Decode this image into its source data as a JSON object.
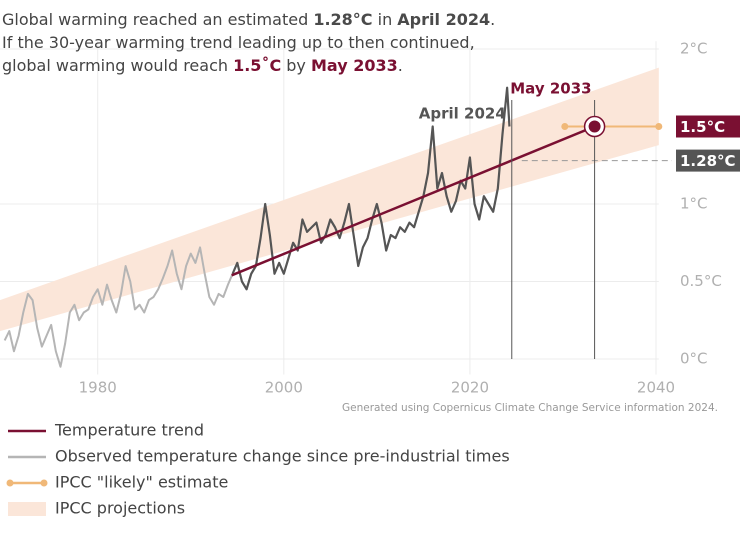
{
  "chart_data": {
    "type": "line",
    "title_lines": [
      [
        {
          "text": "Global warming reached an estimated "
        },
        {
          "text": "1.28°C",
          "bold": true,
          "color": "#4a4a4a"
        },
        {
          "text": " in "
        },
        {
          "text": "April 2024",
          "bold": true,
          "color": "#4a4a4a"
        },
        {
          "text": "."
        }
      ],
      [
        {
          "text": "If the 30-year warming trend leading up to then continued,"
        }
      ],
      [
        {
          "text": "global warming would reach "
        },
        {
          "text": "1.5˚C",
          "bold": true,
          "color": "#7a1032"
        },
        {
          "text": " by "
        },
        {
          "text": "May 2033",
          "bold": true,
          "color": "#7a1032"
        },
        {
          "text": "."
        }
      ]
    ],
    "caption": "Generated using Copernicus Climate Change Service information 2024.",
    "xlim": [
      1969.5,
      2040.3
    ],
    "ylim": [
      -0.1,
      2.05
    ],
    "xticks": [
      1980,
      2000,
      2020,
      2040
    ],
    "yticks": [
      {
        "value": 0,
        "label": "0°C"
      },
      {
        "value": 0.5,
        "label": "0.5°C"
      },
      {
        "value": 1,
        "label": "1°C"
      },
      {
        "value": 2,
        "label": "2°C"
      }
    ],
    "grid": true,
    "band": {
      "name": "IPCC projections",
      "color": "#fbe6d9",
      "x": [
        1969.5,
        2040.3
      ],
      "lower": [
        0.18,
        1.38
      ],
      "upper": [
        0.38,
        1.88
      ]
    },
    "series": [
      {
        "name": "Temperature trend",
        "color": "#7a1032",
        "style": "line",
        "x": [
          1994.4,
          2033.4
        ],
        "values": [
          0.54,
          1.5
        ]
      },
      {
        "name": "Observed temperature change since pre-industrial times",
        "color": "#b5b5b5",
        "style": "line",
        "highlight": {
          "from": 1994.5,
          "color": "#555555"
        },
        "x": [
          1970,
          1970.5,
          1971,
          1971.5,
          1972,
          1972.5,
          1973,
          1973.5,
          1974,
          1974.5,
          1975,
          1975.5,
          1976,
          1976.5,
          1977,
          1977.5,
          1978,
          1978.5,
          1979,
          1979.5,
          1980,
          1980.5,
          1981,
          1981.5,
          1982,
          1982.5,
          1983,
          1983.5,
          1984,
          1984.5,
          1985,
          1985.5,
          1986,
          1986.5,
          1987,
          1987.5,
          1988,
          1988.5,
          1989,
          1989.5,
          1990,
          1990.5,
          1991,
          1991.5,
          1992,
          1992.5,
          1993,
          1993.5,
          1994,
          1994.5,
          1995,
          1995.5,
          1996,
          1996.5,
          1997,
          1997.5,
          1998,
          1998.5,
          1999,
          1999.5,
          2000,
          2000.5,
          2001,
          2001.5,
          2002,
          2002.5,
          2003,
          2003.5,
          2004,
          2004.5,
          2005,
          2005.5,
          2006,
          2006.5,
          2007,
          2007.5,
          2008,
          2008.5,
          2009,
          2009.5,
          2010,
          2010.5,
          2011,
          2011.5,
          2012,
          2012.5,
          2013,
          2013.5,
          2014,
          2014.5,
          2015,
          2015.5,
          2016,
          2016.5,
          2017,
          2017.5,
          2018,
          2018.5,
          2019,
          2019.5,
          2020,
          2020.5,
          2021,
          2021.5,
          2022,
          2022.5,
          2023,
          2023.5,
          2024,
          2024.25
        ],
        "values": [
          0.12,
          0.18,
          0.05,
          0.15,
          0.3,
          0.42,
          0.38,
          0.2,
          0.08,
          0.15,
          0.22,
          0.05,
          -0.05,
          0.1,
          0.3,
          0.35,
          0.25,
          0.3,
          0.32,
          0.4,
          0.45,
          0.35,
          0.48,
          0.38,
          0.3,
          0.42,
          0.6,
          0.5,
          0.32,
          0.35,
          0.3,
          0.38,
          0.4,
          0.45,
          0.52,
          0.6,
          0.7,
          0.55,
          0.45,
          0.6,
          0.68,
          0.62,
          0.72,
          0.55,
          0.4,
          0.35,
          0.42,
          0.4,
          0.48,
          0.55,
          0.62,
          0.5,
          0.45,
          0.55,
          0.6,
          0.78,
          1.0,
          0.8,
          0.55,
          0.62,
          0.55,
          0.65,
          0.75,
          0.7,
          0.9,
          0.82,
          0.85,
          0.88,
          0.75,
          0.8,
          0.9,
          0.85,
          0.78,
          0.88,
          1.0,
          0.8,
          0.6,
          0.72,
          0.78,
          0.9,
          1.0,
          0.88,
          0.7,
          0.8,
          0.78,
          0.85,
          0.82,
          0.88,
          0.85,
          0.95,
          1.05,
          1.2,
          1.5,
          1.1,
          1.2,
          1.05,
          0.95,
          1.02,
          1.15,
          1.1,
          1.3,
          1.0,
          0.9,
          1.05,
          1.0,
          0.95,
          1.1,
          1.45,
          1.75,
          1.5
        ]
      },
      {
        "name": "IPCC \"likely\" estimate",
        "color": "#f0b878",
        "style": "line-marker",
        "x": [
          2030.2,
          2040.3
        ],
        "values": [
          1.5,
          1.5
        ]
      }
    ],
    "annotations": [
      {
        "text": "April 2024",
        "x": 2024.5,
        "y": 1.6,
        "color": "#555555"
      },
      {
        "text": "May 2033",
        "x": 2033.4,
        "y": 1.5,
        "color": "#7a1032"
      }
    ],
    "value_markers": [
      {
        "value": 1.5,
        "label": "1.5°C",
        "color": "#7a1032"
      },
      {
        "value": 1.28,
        "label": "1.28°C",
        "color": "#555555"
      }
    ]
  }
}
